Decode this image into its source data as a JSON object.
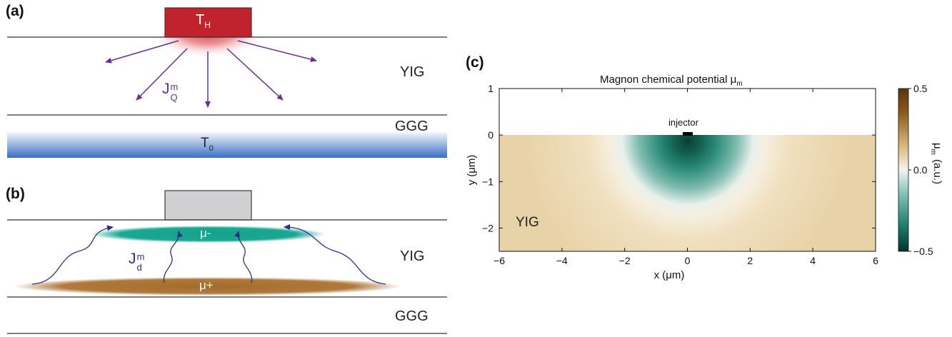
{
  "panel_a": {
    "label": "(a)",
    "heater_label": "T",
    "heater_sub": "H",
    "flux_label": "J",
    "flux_sup": "m",
    "flux_sub": "Q",
    "yig_label": "YIG",
    "ggg_label": "GGG",
    "substrate_label": "T",
    "substrate_sub": "0",
    "colors": {
      "heater": "#c0232e",
      "arrows": "#6b2e8f",
      "substrate": "#3a6fc4"
    }
  },
  "panel_b": {
    "label": "(b)",
    "minus_label": "μ-",
    "plus_label": "μ+",
    "flux_label": "J",
    "flux_sup": "m",
    "flux_sub": "d",
    "yig_label": "YIG",
    "ggg_label": "GGG",
    "colors": {
      "contact": "#d0d0d3",
      "minus": "#17a38e",
      "plus": "#a66b2b",
      "wavy": "#2e2e8a"
    }
  },
  "panel_c": {
    "label": "(c)",
    "title": "Magnon chemical potential μ",
    "title_sub": "m",
    "injector_label": "injector",
    "region_label": "YIG",
    "xlabel": "x (μm)",
    "ylabel": "y (μm)",
    "cbar_label": "μ",
    "cbar_sub": "m",
    "cbar_unit": "(a.u.)",
    "xticks": [
      "−6",
      "−4",
      "−2",
      "0",
      "2",
      "4",
      "6"
    ],
    "yticks": [
      "1",
      "0",
      "−1",
      "−2"
    ],
    "cbar_ticks": [
      "0.5",
      "0.0",
      "−0.5"
    ],
    "colors": {
      "positive": "#8c5a1e",
      "neutral": "#f5f3f0",
      "negative": "#0a4a3e"
    }
  },
  "chart_data": {
    "type": "heatmap",
    "title": "Magnon chemical potential μm",
    "xlabel": "x (μm)",
    "ylabel": "y (μm)",
    "xlim": [
      -6,
      6
    ],
    "ylim": [
      -2.5,
      1
    ],
    "clim": [
      -0.5,
      0.5
    ],
    "colorbar_label": "μm (a.u.)",
    "annotations": [
      "injector",
      "YIG"
    ],
    "injector_position": {
      "x": 0,
      "y": 0
    },
    "min_value_at": {
      "x": 0,
      "y": -0.2,
      "value": -0.5
    },
    "zero_contour_radius_um": 1.6,
    "far_field_value": 0.12
  }
}
